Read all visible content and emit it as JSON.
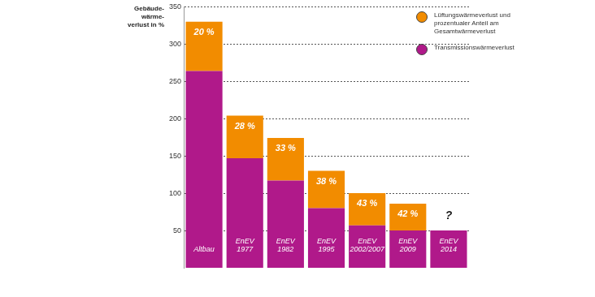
{
  "chart_data": {
    "type": "bar",
    "stacked": true,
    "y_label": "Gebäude-wärme-verlust in %",
    "categories": [
      "Altbau",
      "EnEV 1977",
      "EnEV 1982",
      "EnEV 1995",
      "EnEV 2002/2007",
      "EnEV 2009",
      "EnEV 2014"
    ],
    "series": [
      {
        "name": "Transmissionswärmeverlust",
        "color": "#b0198a",
        "values": [
          264,
          147,
          117,
          80,
          57,
          50,
          50
        ]
      },
      {
        "name": "Lüftungswärmeverlust und prozentualer Anteil am Gesamtwärmeverlust",
        "color": "#f28c00",
        "values": [
          66,
          57,
          57,
          50,
          43,
          36,
          null
        ]
      }
    ],
    "share_labels": [
      "20 %",
      "28 %",
      "33 %",
      "38 %",
      "43 %",
      "42 %",
      "?"
    ],
    "ylim": [
      0,
      350
    ],
    "yticks": [
      50,
      100,
      150,
      200,
      250,
      300,
      350
    ],
    "grid": true,
    "legend": "top right",
    "tick_labels": "y"
  }
}
